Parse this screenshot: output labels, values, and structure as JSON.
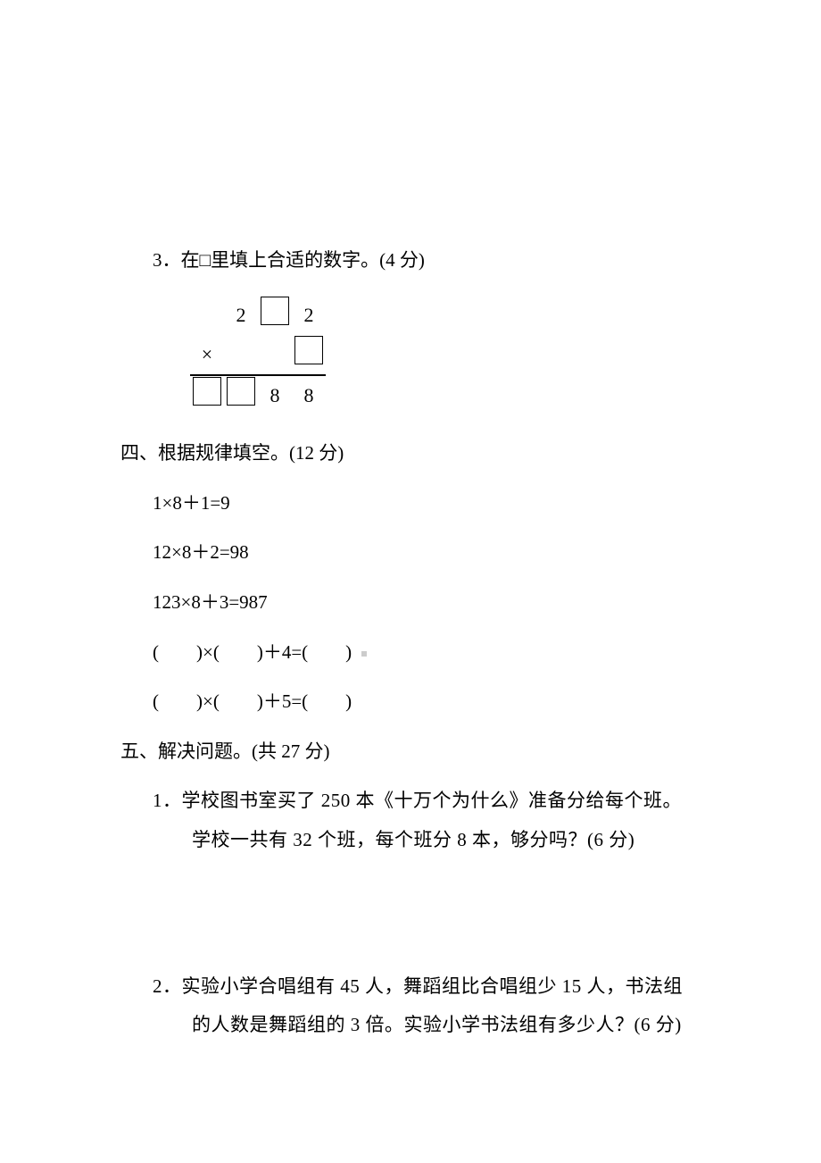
{
  "colors": {
    "text": "#000000",
    "background": "#ffffff",
    "marker": "#cccccc"
  },
  "typography": {
    "body_font": "SimSun",
    "number_font": "Times New Roman",
    "fontsize_pt": 16
  },
  "q3": {
    "label": "3．在□里填上合适的数字。(4 分)",
    "multiplication": {
      "rows": [
        {
          "cells": [
            "",
            "2",
            "□",
            "2"
          ]
        },
        {
          "cells": [
            "×",
            "",
            "",
            "□"
          ]
        },
        {
          "cells": [
            "□",
            "□",
            "8",
            "8"
          ],
          "topline": true
        }
      ]
    }
  },
  "sec4": {
    "label": "四、根据规律填空。(12 分)",
    "lines": [
      "1×8＋1=9",
      "12×8＋2=98",
      "123×8＋3=987",
      "(　　)×(　　)＋4=(　　)",
      "(　　)×(　　)＋5=(　　)"
    ]
  },
  "sec5": {
    "label": "五、解决问题。(共 27 分)",
    "q1": {
      "num": "1．",
      "l1": "学校图书室买了 250 本《十万个为什么》准备分给每个班。",
      "l2": "学校一共有 32 个班，每个班分 8 本，够分吗？(6 分)"
    },
    "q2": {
      "num": "2．",
      "l1": "实验小学合唱组有 45 人，舞蹈组比合唱组少 15 人，书法组",
      "l2": "的人数是舞蹈组的 3 倍。实验小学书法组有多少人？(6 分)"
    }
  }
}
